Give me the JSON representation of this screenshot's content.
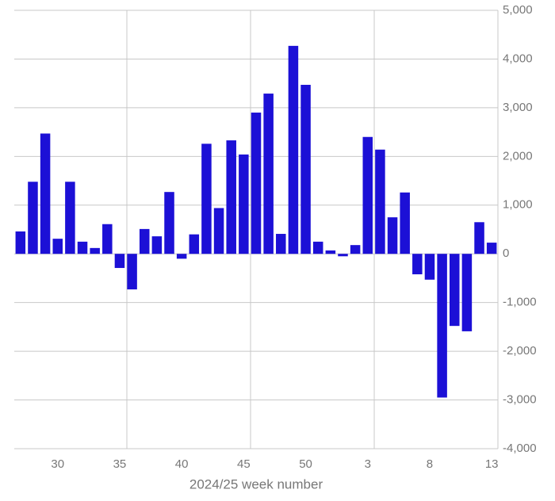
{
  "chart_data": {
    "type": "bar",
    "x_label": "2024/25 week number",
    "categories": [
      null,
      null,
      null,
      "30",
      null,
      null,
      null,
      null,
      "35",
      null,
      null,
      null,
      null,
      "40",
      null,
      null,
      null,
      null,
      "45",
      null,
      null,
      null,
      null,
      "50",
      null,
      null,
      null,
      null,
      "3",
      null,
      null,
      null,
      null,
      "8",
      null,
      null,
      null,
      null,
      "13"
    ],
    "values": [
      460,
      1480,
      2470,
      310,
      1480,
      250,
      120,
      610,
      -290,
      -730,
      510,
      360,
      1270,
      -100,
      400,
      2260,
      940,
      2330,
      2040,
      2900,
      3290,
      410,
      4270,
      3470,
      250,
      70,
      -50,
      180,
      2400,
      2140,
      750,
      1260,
      -420,
      -530,
      -2950,
      -1480,
      -1590,
      650,
      230
    ],
    "color": "#1c10d6",
    "ylim": [
      -4000,
      5000
    ],
    "yticks": [
      {
        "value": -4000,
        "label": "-4,000"
      },
      {
        "value": -3000,
        "label": "-3,000"
      },
      {
        "value": -2000,
        "label": "-2,000"
      },
      {
        "value": -1000,
        "label": "-1,000"
      },
      0,
      {
        "value": 1000,
        "label": "1,000"
      },
      {
        "value": 2000,
        "label": "2,000"
      },
      {
        "value": 3000,
        "label": "3,000"
      },
      {
        "value": 4000,
        "label": "4,000"
      },
      {
        "value": 5000,
        "label": "5,000"
      }
    ],
    "grid": true
  }
}
